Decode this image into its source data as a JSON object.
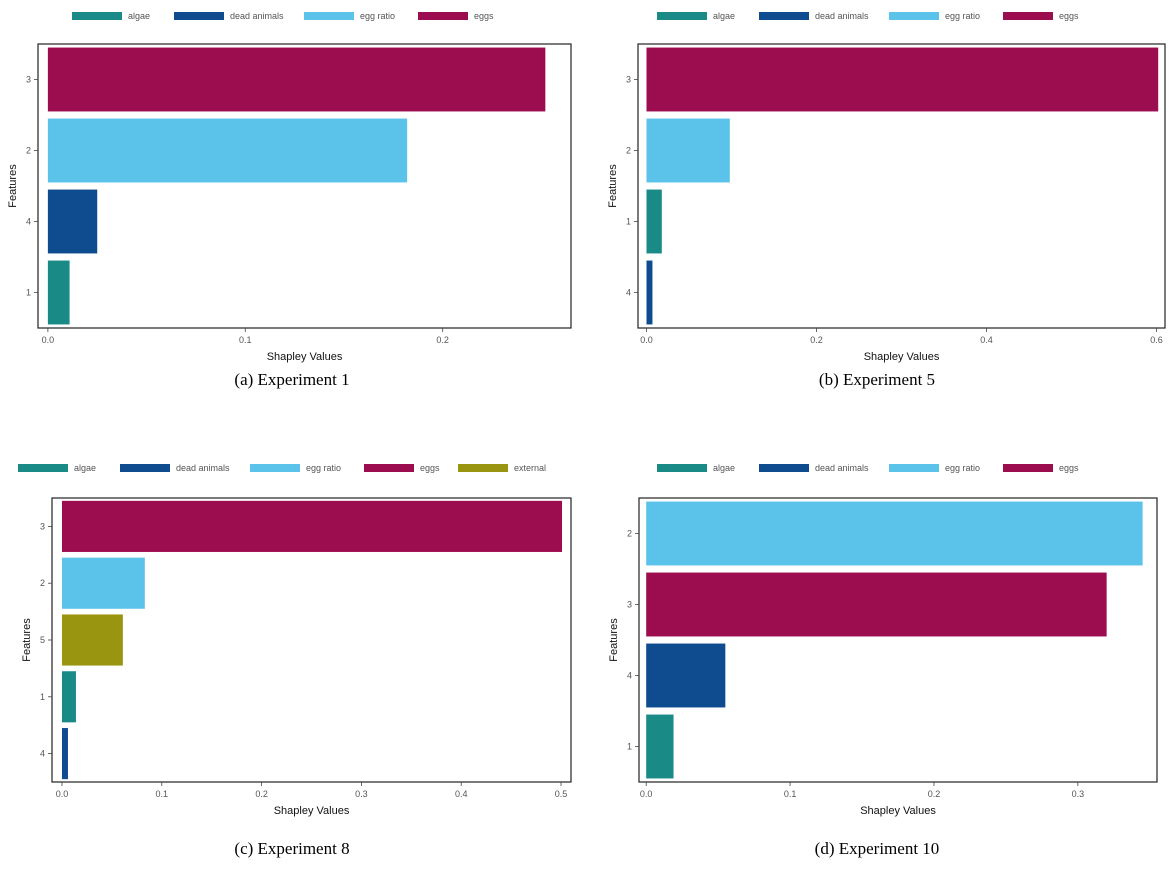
{
  "colors": {
    "algae": "#1a8a87",
    "dead animals": "#0e4b8f",
    "egg ratio": "#5bc2ea",
    "eggs": "#9c0d4f",
    "external": "#999510"
  },
  "chart_data": [
    {
      "type": "bar",
      "orientation": "horizontal",
      "caption": "(a) Experiment 1",
      "legend": [
        "algae",
        "dead animals",
        "egg ratio",
        "eggs"
      ],
      "legend_position": "top",
      "xlabel": "Shapley Values",
      "ylabel": "Features",
      "xlim": [
        -0.005,
        0.265
      ],
      "xticks": [
        0.0,
        0.1,
        0.2
      ],
      "xtick_labels": [
        "0.0",
        "0.1",
        "0.2"
      ],
      "categories": [
        "3",
        "2",
        "4",
        "1"
      ],
      "values": [
        0.252,
        0.182,
        0.025,
        0.011
      ],
      "series": [
        "eggs",
        "egg ratio",
        "dead animals",
        "algae"
      ]
    },
    {
      "type": "bar",
      "orientation": "horizontal",
      "caption": "(b) Experiment 5",
      "legend": [
        "algae",
        "dead animals",
        "egg ratio",
        "eggs"
      ],
      "legend_position": "top",
      "xlabel": "Shapley Values",
      "ylabel": "Features",
      "xlim": [
        -0.01,
        0.61
      ],
      "xticks": [
        0.0,
        0.2,
        0.4,
        0.6
      ],
      "xtick_labels": [
        "0.0",
        "0.2",
        "0.4",
        "0.6"
      ],
      "categories": [
        "3",
        "2",
        "1",
        "4"
      ],
      "values": [
        0.602,
        0.098,
        0.018,
        0.007
      ],
      "series": [
        "eggs",
        "egg ratio",
        "algae",
        "dead animals"
      ]
    },
    {
      "type": "bar",
      "orientation": "horizontal",
      "caption": "(c) Experiment 8",
      "legend": [
        "algae",
        "dead animals",
        "egg ratio",
        "eggs",
        "external"
      ],
      "legend_position": "top",
      "xlabel": "Shapley Values",
      "ylabel": "Features",
      "xlim": [
        -0.01,
        0.51
      ],
      "xticks": [
        0.0,
        0.1,
        0.2,
        0.3,
        0.4,
        0.5
      ],
      "xtick_labels": [
        "0.0",
        "0.1",
        "0.2",
        "0.3",
        "0.4",
        "0.5"
      ],
      "categories": [
        "3",
        "2",
        "5",
        "1",
        "4"
      ],
      "values": [
        0.501,
        0.083,
        0.061,
        0.014,
        0.006
      ],
      "series": [
        "eggs",
        "egg ratio",
        "external",
        "algae",
        "dead animals"
      ]
    },
    {
      "type": "bar",
      "orientation": "horizontal",
      "caption": "(d) Experiment 10",
      "legend": [
        "algae",
        "dead animals",
        "egg ratio",
        "eggs"
      ],
      "legend_position": "top",
      "xlabel": "Shapley Values",
      "ylabel": "Features",
      "xlim": [
        -0.005,
        0.355
      ],
      "xticks": [
        0.0,
        0.1,
        0.2,
        0.3
      ],
      "xtick_labels": [
        "0.0",
        "0.1",
        "0.2",
        "0.3"
      ],
      "categories": [
        "2",
        "3",
        "4",
        "1"
      ],
      "values": [
        0.345,
        0.32,
        0.055,
        0.019
      ],
      "series": [
        "egg ratio",
        "eggs",
        "dead animals",
        "algae"
      ]
    }
  ]
}
